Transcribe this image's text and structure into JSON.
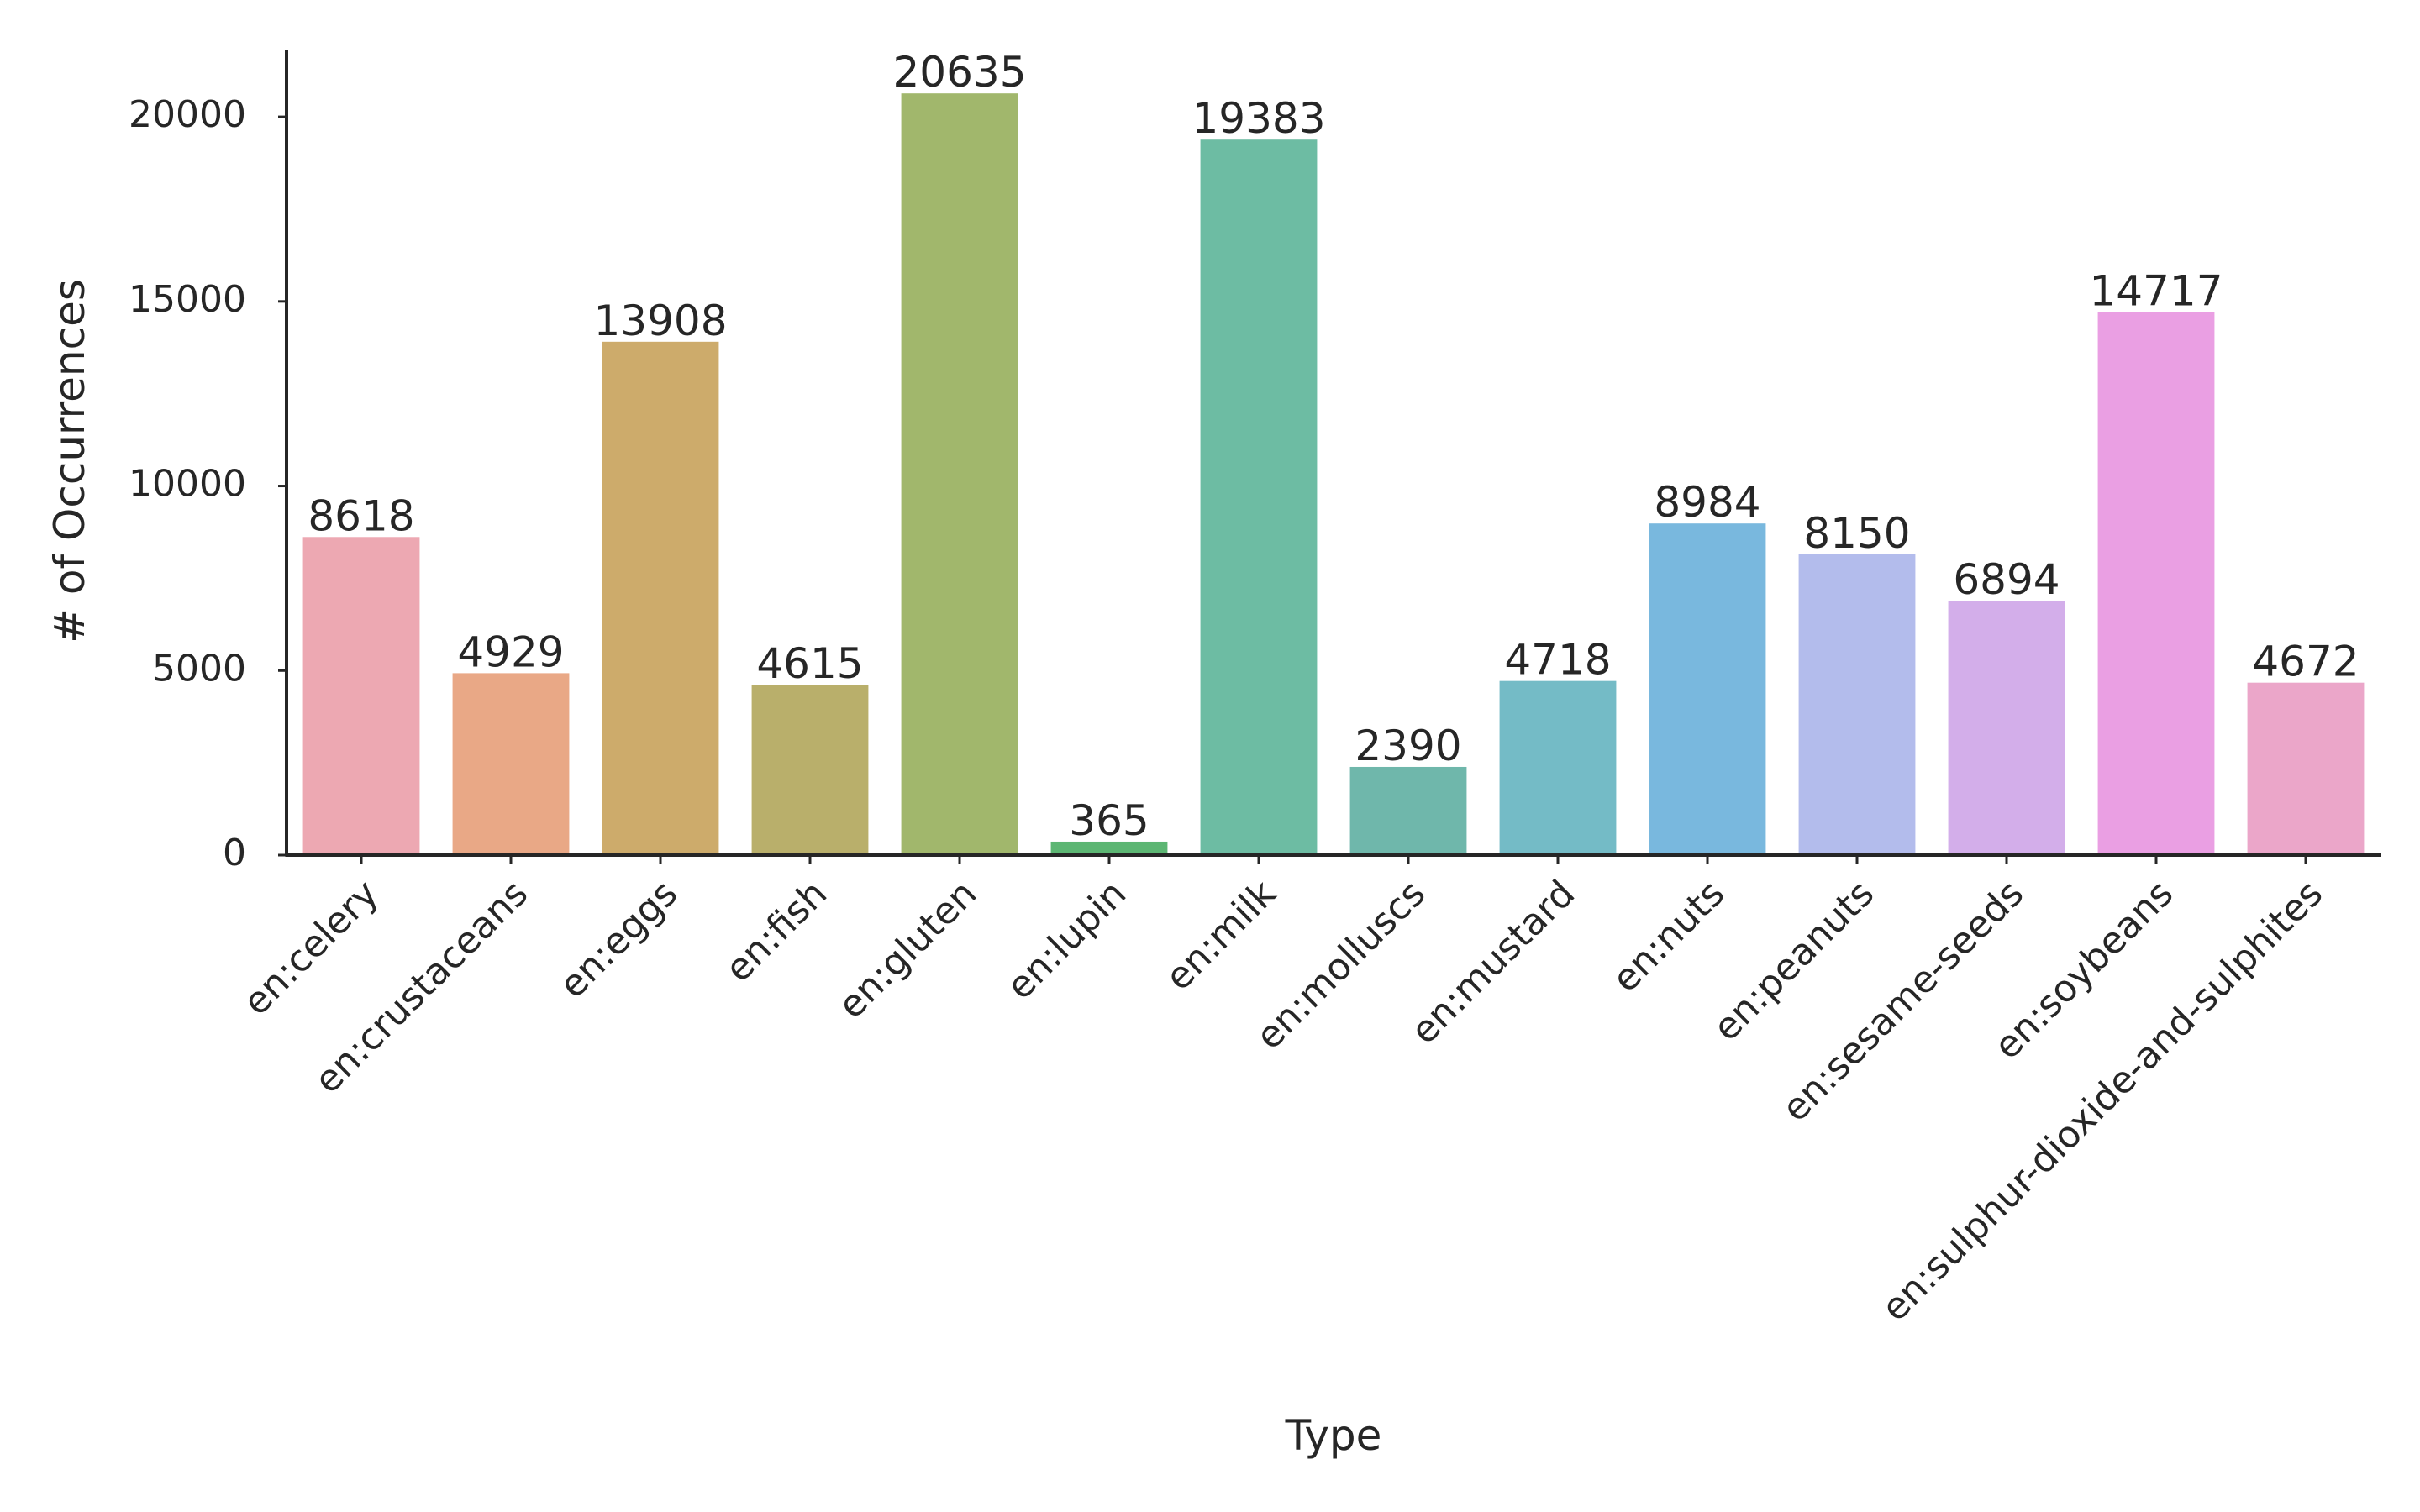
{
  "chart_data": {
    "type": "bar",
    "title": "",
    "xlabel": "Type",
    "ylabel": "# of Occurrences",
    "ylim": [
      0,
      21800
    ],
    "yticks": [
      0,
      5000,
      10000,
      15000,
      20000
    ],
    "grid": false,
    "legend": "none",
    "categories": [
      "en:celery",
      "en:crustaceans",
      "en:eggs",
      "en:fish",
      "en:gluten",
      "en:lupin",
      "en:milk",
      "en:molluscs",
      "en:mustard",
      "en:nuts",
      "en:peanuts",
      "en:sesame-seeds",
      "en:soybeans",
      "en:sulphur-dioxide-and-sulphites"
    ],
    "values": [
      8618,
      4929,
      13908,
      4615,
      20635,
      365,
      19383,
      2390,
      4718,
      8984,
      8150,
      6894,
      14717,
      4672
    ],
    "colors": [
      "#eda8b2",
      "#e9a886",
      "#cdab6b",
      "#b9af6b",
      "#a1b76c",
      "#5cb673",
      "#6dbca3",
      "#6fb7ab",
      "#74bbc6",
      "#79b8de",
      "#b3bcec",
      "#d3aeea",
      "#ea9fe3",
      "#eba6c9"
    ],
    "spine_color": "#262626",
    "text_color": "#262626"
  }
}
